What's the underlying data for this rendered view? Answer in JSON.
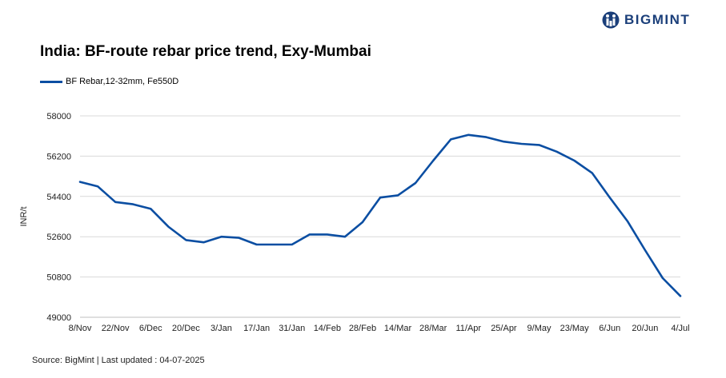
{
  "brand": {
    "name": "BIGMINT",
    "color": "#1b3f7a"
  },
  "chart_data": {
    "type": "line",
    "title": "India: BF-route rebar price trend, Exy-Mumbai",
    "ylabel": "INR/t",
    "xlabel": "",
    "ylim": [
      49000,
      58000
    ],
    "yticks": [
      49000,
      50800,
      52600,
      54400,
      56200,
      58000
    ],
    "ytick_labels": [
      "49000",
      "50800",
      "52600",
      "54400",
      "56200",
      "58000"
    ],
    "x_tick_labels": [
      "8/Nov",
      "22/Nov",
      "6/Dec",
      "20/Dec",
      "3/Jan",
      "17/Jan",
      "31/Jan",
      "14/Feb",
      "28/Feb",
      "14/Mar",
      "28/Mar",
      "11/Apr",
      "25/Apr",
      "9/May",
      "23/May",
      "6/Jun",
      "20/Jun",
      "4/Jul"
    ],
    "x": [
      "8/Nov",
      "15/Nov",
      "22/Nov",
      "29/Nov",
      "6/Dec",
      "13/Dec",
      "20/Dec",
      "27/Dec",
      "3/Jan",
      "10/Jan",
      "17/Jan",
      "24/Jan",
      "31/Jan",
      "7/Feb",
      "14/Feb",
      "21/Feb",
      "28/Feb",
      "7/Mar",
      "14/Mar",
      "21/Mar",
      "28/Mar",
      "4/Apr",
      "11/Apr",
      "18/Apr",
      "25/Apr",
      "2/May",
      "9/May",
      "16/May",
      "23/May",
      "30/May",
      "6/Jun",
      "13/Jun",
      "20/Jun",
      "27/Jun",
      "4/Jul"
    ],
    "series": [
      {
        "name": "BF Rebar,12-32mm, Fe550D",
        "color": "#0b4ea2",
        "values": [
          55050,
          54850,
          54150,
          54050,
          53850,
          53050,
          52450,
          52350,
          52600,
          52550,
          52250,
          52250,
          52250,
          52700,
          52700,
          52600,
          53250,
          54350,
          54450,
          55000,
          56000,
          56950,
          57150,
          57050,
          56850,
          56750,
          56700,
          56400,
          56000,
          55450,
          54350,
          53300,
          52000,
          50750,
          49950
        ]
      }
    ],
    "grid": true,
    "legend_position": "top-left"
  },
  "footer": {
    "source": "Source: BigMint | Last updated : 04-07-2025"
  }
}
